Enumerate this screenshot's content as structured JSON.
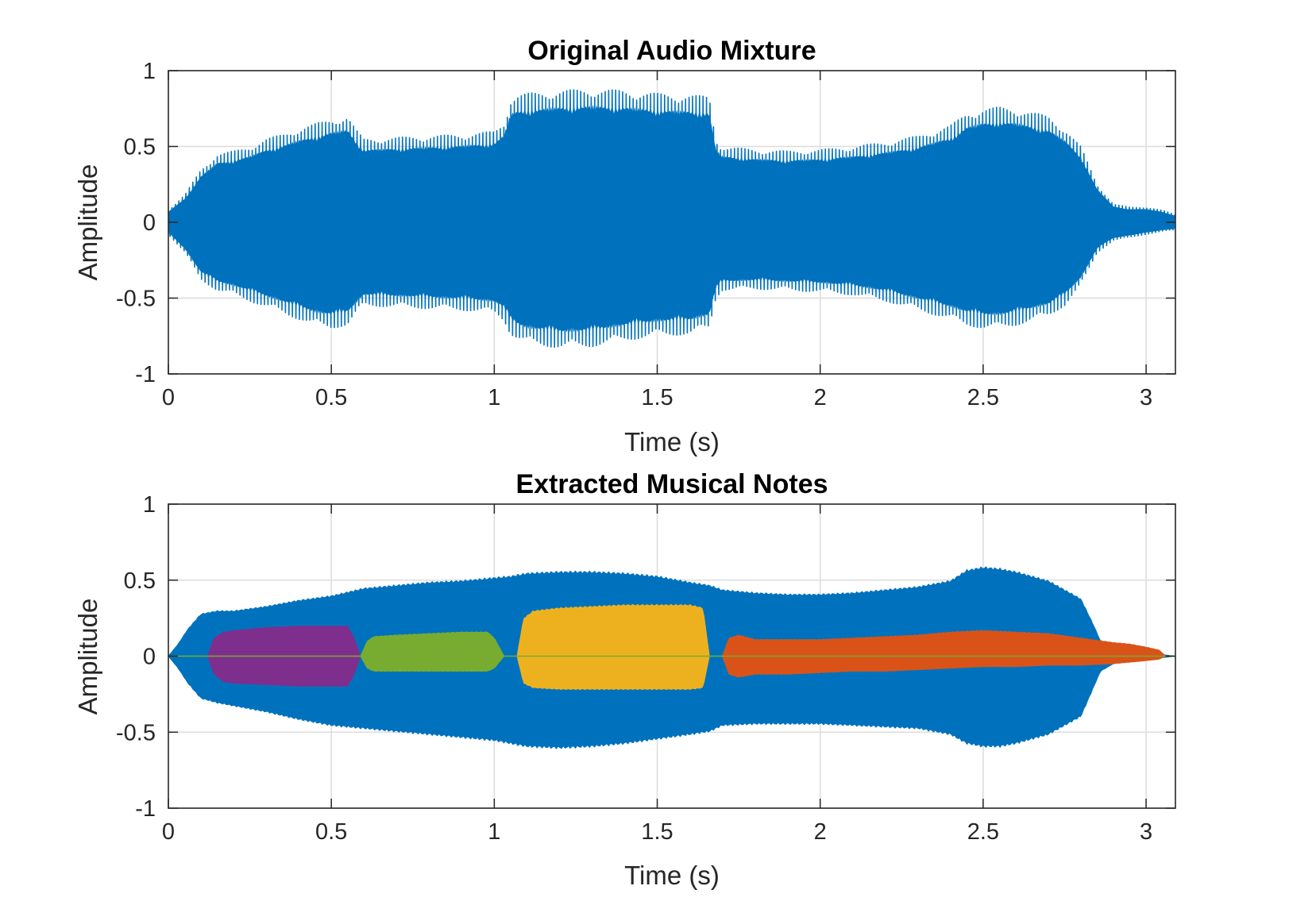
{
  "chart_data": [
    {
      "type": "area",
      "title": "Original Audio Mixture",
      "xlabel": "Time (s)",
      "ylabel": "Amplitude",
      "xlim": [
        0,
        3.09
      ],
      "ylim": [
        -1,
        1
      ],
      "xticks": [
        0,
        0.5,
        1,
        1.5,
        2,
        2.5,
        3
      ],
      "xtick_labels": [
        "0",
        "0.5",
        "1",
        "1.5",
        "2",
        "2.5",
        "3"
      ],
      "yticks": [
        -1,
        -0.5,
        0,
        0.5,
        1
      ],
      "ytick_labels": [
        "-1",
        "-0.5",
        "0",
        "0.5",
        "1"
      ],
      "grid": true,
      "series": [
        {
          "color": "#0072BD",
          "envelope": {
            "x": [
              0,
              0.05,
              0.1,
              0.15,
              0.2,
              0.25,
              0.3,
              0.35,
              0.4,
              0.45,
              0.5,
              0.55,
              0.58,
              0.6,
              0.7,
              0.8,
              0.9,
              1.0,
              1.03,
              1.05,
              1.07,
              1.1,
              1.2,
              1.3,
              1.4,
              1.5,
              1.6,
              1.66,
              1.68,
              1.7,
              1.8,
              1.9,
              2.0,
              2.1,
              2.2,
              2.3,
              2.4,
              2.45,
              2.5,
              2.55,
              2.6,
              2.7,
              2.75,
              2.8,
              2.85,
              2.9,
              2.95,
              3.0,
              3.05,
              3.09
            ],
            "upper": [
              0.08,
              0.18,
              0.35,
              0.45,
              0.47,
              0.5,
              0.55,
              0.58,
              0.62,
              0.65,
              0.68,
              0.7,
              0.6,
              0.55,
              0.56,
              0.57,
              0.58,
              0.6,
              0.66,
              0.82,
              0.84,
              0.85,
              0.87,
              0.88,
              0.87,
              0.85,
              0.84,
              0.83,
              0.55,
              0.5,
              0.48,
              0.47,
              0.48,
              0.5,
              0.53,
              0.57,
              0.64,
              0.72,
              0.75,
              0.76,
              0.75,
              0.7,
              0.62,
              0.5,
              0.25,
              0.12,
              0.1,
              0.1,
              0.08,
              0.05
            ],
            "lower": [
              -0.08,
              -0.2,
              -0.38,
              -0.45,
              -0.48,
              -0.52,
              -0.56,
              -0.6,
              -0.64,
              -0.68,
              -0.7,
              -0.68,
              -0.6,
              -0.55,
              -0.56,
              -0.57,
              -0.58,
              -0.6,
              -0.65,
              -0.74,
              -0.77,
              -0.8,
              -0.83,
              -0.82,
              -0.78,
              -0.75,
              -0.74,
              -0.7,
              -0.5,
              -0.45,
              -0.44,
              -0.45,
              -0.46,
              -0.48,
              -0.52,
              -0.58,
              -0.64,
              -0.68,
              -0.7,
              -0.7,
              -0.68,
              -0.62,
              -0.55,
              -0.42,
              -0.2,
              -0.12,
              -0.1,
              -0.08,
              -0.06,
              -0.05
            ]
          }
        }
      ]
    },
    {
      "type": "area",
      "title": "Extracted Musical Notes",
      "xlabel": "Time (s)",
      "ylabel": "Amplitude",
      "xlim": [
        0,
        3.09
      ],
      "ylim": [
        -1,
        1
      ],
      "xticks": [
        0,
        0.5,
        1,
        1.5,
        2,
        2.5,
        3
      ],
      "xtick_labels": [
        "0",
        "0.5",
        "1",
        "1.5",
        "2",
        "2.5",
        "3"
      ],
      "yticks": [
        -1,
        -0.5,
        0,
        0.5,
        1
      ],
      "ytick_labels": [
        "-1",
        "-0.5",
        "0",
        "0.5",
        "1"
      ],
      "grid": true,
      "series": [
        {
          "color": "#0072BD",
          "envelope": {
            "x": [
              0,
              0.03,
              0.06,
              0.1,
              0.15,
              0.2,
              0.3,
              0.4,
              0.5,
              0.6,
              0.7,
              0.8,
              0.9,
              1.0,
              1.05,
              1.1,
              1.2,
              1.3,
              1.4,
              1.5,
              1.6,
              1.66,
              1.7,
              1.8,
              1.9,
              2.0,
              2.1,
              2.2,
              2.3,
              2.4,
              2.45,
              2.5,
              2.55,
              2.6,
              2.7,
              2.8,
              2.84,
              2.86,
              2.9,
              2.95,
              3.0,
              3.05,
              3.09
            ],
            "upper": [
              0.0,
              0.08,
              0.18,
              0.28,
              0.3,
              0.3,
              0.33,
              0.37,
              0.4,
              0.45,
              0.47,
              0.49,
              0.5,
              0.52,
              0.53,
              0.55,
              0.56,
              0.56,
              0.55,
              0.53,
              0.49,
              0.47,
              0.44,
              0.42,
              0.41,
              0.41,
              0.42,
              0.44,
              0.46,
              0.5,
              0.57,
              0.59,
              0.58,
              0.56,
              0.5,
              0.38,
              0.2,
              0.1,
              0.05,
              0.03,
              0.02,
              0.01,
              0.0
            ],
            "lower": [
              0.0,
              -0.08,
              -0.18,
              -0.28,
              -0.31,
              -0.33,
              -0.37,
              -0.42,
              -0.46,
              -0.48,
              -0.5,
              -0.52,
              -0.54,
              -0.56,
              -0.58,
              -0.6,
              -0.61,
              -0.6,
              -0.58,
              -0.55,
              -0.52,
              -0.5,
              -0.46,
              -0.45,
              -0.45,
              -0.45,
              -0.46,
              -0.47,
              -0.48,
              -0.52,
              -0.58,
              -0.6,
              -0.6,
              -0.58,
              -0.52,
              -0.4,
              -0.2,
              -0.1,
              -0.05,
              -0.03,
              -0.02,
              -0.01,
              0.0
            ]
          }
        },
        {
          "color": "#7E2F8E",
          "envelope": {
            "x": [
              0.12,
              0.14,
              0.17,
              0.2,
              0.3,
              0.4,
              0.5,
              0.55,
              0.57,
              0.59
            ],
            "upper": [
              0.0,
              0.12,
              0.16,
              0.17,
              0.19,
              0.2,
              0.2,
              0.2,
              0.12,
              0.0
            ],
            "lower": [
              0.0,
              -0.12,
              -0.17,
              -0.18,
              -0.19,
              -0.2,
              -0.2,
              -0.2,
              -0.12,
              0.0
            ]
          }
        },
        {
          "color": "#77AC30",
          "envelope": {
            "x": [
              0.59,
              0.61,
              0.63,
              0.7,
              0.8,
              0.9,
              0.98,
              1.0,
              1.03
            ],
            "upper": [
              0.0,
              0.1,
              0.13,
              0.14,
              0.15,
              0.16,
              0.16,
              0.12,
              0.0
            ],
            "lower": [
              0.0,
              -0.08,
              -0.1,
              -0.1,
              -0.1,
              -0.1,
              -0.1,
              -0.08,
              0.0
            ]
          }
        },
        {
          "color": "#EDB120",
          "envelope": {
            "x": [
              1.07,
              1.09,
              1.12,
              1.2,
              1.3,
              1.4,
              1.5,
              1.6,
              1.64,
              1.66
            ],
            "upper": [
              0.0,
              0.25,
              0.3,
              0.32,
              0.33,
              0.34,
              0.34,
              0.34,
              0.32,
              0.0
            ],
            "lower": [
              0.0,
              -0.18,
              -0.21,
              -0.22,
              -0.22,
              -0.22,
              -0.22,
              -0.22,
              -0.21,
              0.0
            ]
          }
        },
        {
          "color": "#D95319",
          "envelope": {
            "x": [
              1.7,
              1.72,
              1.75,
              1.8,
              1.9,
              2.0,
              2.1,
              2.2,
              2.3,
              2.4,
              2.5,
              2.6,
              2.7,
              2.8,
              2.9,
              2.95,
              3.0,
              3.04,
              3.06
            ],
            "upper": [
              0.0,
              0.12,
              0.14,
              0.11,
              0.11,
              0.11,
              0.12,
              0.13,
              0.14,
              0.16,
              0.17,
              0.16,
              0.15,
              0.12,
              0.09,
              0.08,
              0.06,
              0.04,
              0.0
            ],
            "lower": [
              0.0,
              -0.12,
              -0.14,
              -0.12,
              -0.12,
              -0.11,
              -0.1,
              -0.1,
              -0.09,
              -0.08,
              -0.07,
              -0.07,
              -0.06,
              -0.06,
              -0.05,
              -0.04,
              -0.03,
              -0.02,
              0.0
            ]
          }
        }
      ]
    }
  ]
}
